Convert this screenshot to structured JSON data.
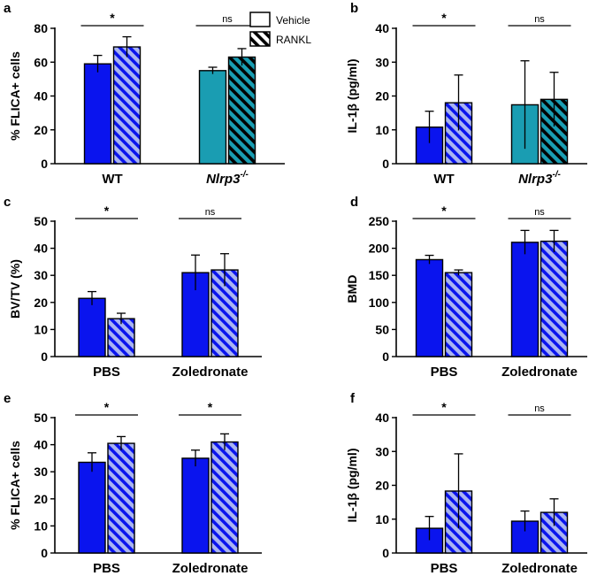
{
  "figure": {
    "legend": {
      "vehicle_label": "Vehicle",
      "rankl_label": "RANKL"
    },
    "colors": {
      "blue": "#0a14ee",
      "blue_hatch_bg": "#a9b4f1",
      "teal": "#1a9db2",
      "dark": "#000000",
      "white": "#ffffff"
    }
  },
  "chart_data": [
    {
      "panel": "a",
      "type": "bar",
      "ylabel": "% FLICA+ cells",
      "ylim": [
        0,
        80
      ],
      "yticks": [
        0,
        20,
        40,
        60,
        80
      ],
      "groups": [
        {
          "label": "WT",
          "italic": false,
          "sig": "*",
          "bars": [
            {
              "series": "Vehicle",
              "value": 59,
              "err": 5,
              "style": "blue"
            },
            {
              "series": "RANKL",
              "value": 69,
              "err": 6,
              "style": "blue-hatch"
            }
          ]
        },
        {
          "label": "Nlrp3",
          "sup": "-/-",
          "italic": true,
          "sig": "ns",
          "bars": [
            {
              "series": "Vehicle",
              "value": 55,
              "err": 2,
              "style": "teal"
            },
            {
              "series": "RANKL",
              "value": 63,
              "err": 5,
              "style": "teal-hatch"
            }
          ]
        }
      ]
    },
    {
      "panel": "b",
      "type": "bar",
      "ylabel": "IL-1β (pg/ml)",
      "ylim": [
        0,
        40
      ],
      "yticks": [
        0,
        10,
        20,
        30,
        40
      ],
      "groups": [
        {
          "label": "WT",
          "italic": false,
          "sig": "*",
          "bars": [
            {
              "series": "Vehicle",
              "value": 10.8,
              "err": 4.7,
              "style": "blue"
            },
            {
              "series": "RANKL",
              "value": 18,
              "err": 8.2,
              "style": "blue-hatch"
            }
          ]
        },
        {
          "label": "Nlrp3",
          "sup": "-/-",
          "italic": true,
          "sig": "ns",
          "bars": [
            {
              "series": "Vehicle",
              "value": 17.4,
              "err": 13,
              "style": "teal"
            },
            {
              "series": "RANKL",
              "value": 19,
              "err": 8,
              "style": "teal-hatch"
            }
          ]
        }
      ]
    },
    {
      "panel": "c",
      "type": "bar",
      "ylabel": "BV/TV (%)",
      "ylim": [
        0,
        50
      ],
      "yticks": [
        0,
        10,
        20,
        30,
        40,
        50
      ],
      "groups": [
        {
          "label": "PBS",
          "italic": false,
          "sig": "*",
          "bars": [
            {
              "series": "Vehicle",
              "value": 21.5,
              "err": 2.5,
              "style": "blue"
            },
            {
              "series": "RANKL",
              "value": 14,
              "err": 2,
              "style": "blue-hatch"
            }
          ]
        },
        {
          "label": "Zoledronate",
          "italic": false,
          "sig": "ns",
          "bars": [
            {
              "series": "Vehicle",
              "value": 31,
              "err": 6.5,
              "style": "blue"
            },
            {
              "series": "RANKL",
              "value": 32,
              "err": 6,
              "style": "blue-hatch"
            }
          ]
        }
      ]
    },
    {
      "panel": "d",
      "type": "bar",
      "ylabel": "BMD",
      "ylim": [
        0,
        250
      ],
      "yticks": [
        0,
        50,
        100,
        150,
        200,
        250
      ],
      "groups": [
        {
          "label": "PBS",
          "italic": false,
          "sig": "*",
          "bars": [
            {
              "series": "Vehicle",
              "value": 179,
              "err": 8,
              "style": "blue"
            },
            {
              "series": "RANKL",
              "value": 155,
              "err": 5,
              "style": "blue-hatch"
            }
          ]
        },
        {
          "label": "Zoledronate",
          "italic": false,
          "sig": "ns",
          "bars": [
            {
              "series": "Vehicle",
              "value": 211,
              "err": 22,
              "style": "blue"
            },
            {
              "series": "RANKL",
              "value": 213,
              "err": 20,
              "style": "blue-hatch"
            }
          ]
        }
      ]
    },
    {
      "panel": "e",
      "type": "bar",
      "ylabel": "% FLICA+ cells",
      "ylim": [
        0,
        50
      ],
      "yticks": [
        0,
        10,
        20,
        30,
        40,
        50
      ],
      "groups": [
        {
          "label": "PBS",
          "italic": false,
          "sig": "*",
          "bars": [
            {
              "series": "Vehicle",
              "value": 33.5,
              "err": 3.5,
              "style": "blue"
            },
            {
              "series": "RANKL",
              "value": 40.5,
              "err": 2.5,
              "style": "blue-hatch"
            }
          ]
        },
        {
          "label": "Zoledronate",
          "italic": false,
          "sig": "*",
          "bars": [
            {
              "series": "Vehicle",
              "value": 35,
              "err": 3,
              "style": "blue"
            },
            {
              "series": "RANKL",
              "value": 41,
              "err": 3,
              "style": "blue-hatch"
            }
          ]
        }
      ]
    },
    {
      "panel": "f",
      "type": "bar",
      "ylabel": "IL-1β (pg/ml)",
      "ylim": [
        0,
        40
      ],
      "yticks": [
        0,
        10,
        20,
        30,
        40
      ],
      "groups": [
        {
          "label": "PBS",
          "italic": false,
          "sig": "*",
          "bars": [
            {
              "series": "Vehicle",
              "value": 7.3,
              "err": 3.5,
              "style": "blue"
            },
            {
              "series": "RANKL",
              "value": 18.3,
              "err": 11,
              "style": "blue-hatch"
            }
          ]
        },
        {
          "label": "Zoledronate",
          "italic": false,
          "sig": "ns",
          "bars": [
            {
              "series": "Vehicle",
              "value": 9.4,
              "err": 3,
              "style": "blue"
            },
            {
              "series": "RANKL",
              "value": 12,
              "err": 4,
              "style": "blue-hatch"
            }
          ]
        }
      ]
    }
  ]
}
